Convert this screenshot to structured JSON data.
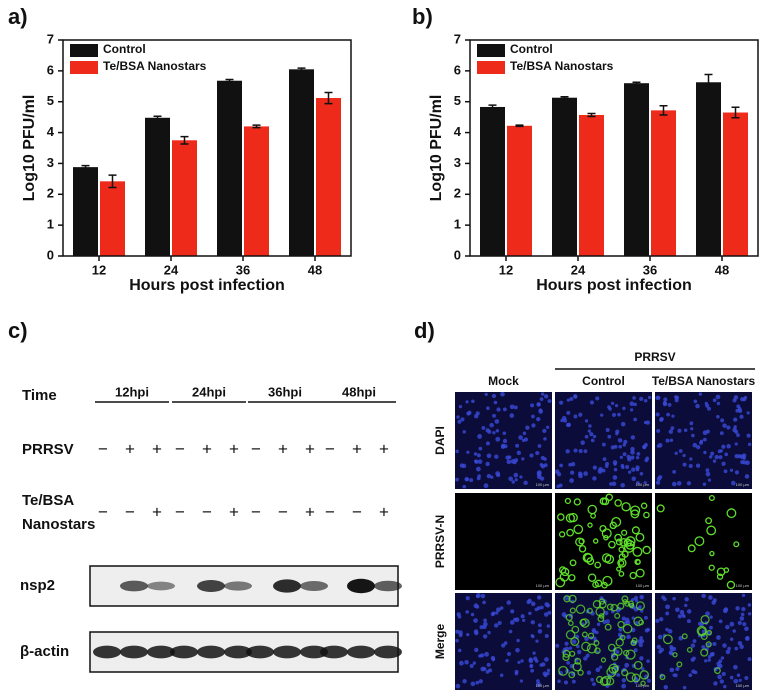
{
  "chart_data": [
    {
      "type": "bar",
      "panel": "a)",
      "x_label": "Hours post infection",
      "y_label": "Log10 PFU/ml",
      "categories": [
        "12",
        "24",
        "36",
        "48"
      ],
      "series": [
        {
          "name": "Control",
          "color": "#111111",
          "values": [
            2.88,
            4.48,
            5.68,
            6.05
          ],
          "errors": [
            0.05,
            0.05,
            0.04,
            0.04
          ]
        },
        {
          "name": "Te/BSA Nanostars",
          "color": "#ee2a1b",
          "values": [
            2.42,
            3.75,
            4.2,
            5.12
          ],
          "errors": [
            0.2,
            0.12,
            0.04,
            0.18
          ]
        }
      ],
      "ylim": [
        0,
        7
      ],
      "yticks": [
        0,
        1,
        2,
        3,
        4,
        5,
        6,
        7
      ],
      "legend": "upper left"
    },
    {
      "type": "bar",
      "panel": "b)",
      "x_label": "Hours post infection",
      "y_label": "Log10 PFU/ml",
      "categories": [
        "12",
        "24",
        "36",
        "48"
      ],
      "series": [
        {
          "name": "Control",
          "color": "#111111",
          "values": [
            4.83,
            5.13,
            5.6,
            5.63
          ],
          "errors": [
            0.06,
            0.03,
            0.03,
            0.25
          ]
        },
        {
          "name": "Te/BSA Nanostars",
          "color": "#ee2a1b",
          "values": [
            4.22,
            4.57,
            4.72,
            4.65
          ],
          "errors": [
            0.02,
            0.05,
            0.15,
            0.17
          ]
        }
      ],
      "ylim": [
        0,
        7
      ],
      "yticks": [
        0,
        1,
        2,
        3,
        4,
        5,
        6,
        7
      ],
      "legend": "upper left"
    }
  ],
  "blot": {
    "panel": "c)",
    "time_label": "Time",
    "time_groups": [
      "12hpi",
      "24hpi",
      "36hpi",
      "48hpi"
    ],
    "rows": [
      {
        "label_lines": [
          "PRRSV"
        ],
        "signs": [
          "−",
          "+",
          "+",
          "−",
          "+",
          "+",
          "−",
          "+",
          "+",
          "−",
          "+",
          "+"
        ]
      },
      {
        "label_lines": [
          "Te/BSA",
          "Nanostars"
        ],
        "signs": [
          "−",
          "−",
          "+",
          "−",
          "−",
          "+",
          "−",
          "−",
          "+",
          "−",
          "−",
          "+"
        ]
      }
    ],
    "bands": [
      "nsp2",
      "β-actin"
    ]
  },
  "microscopy": {
    "panel": "d)",
    "group": "PRRSV",
    "columns": [
      "Mock",
      "Control",
      "Te/BSA Nanostars"
    ],
    "rows": [
      "DAPI",
      "PRRSV-N",
      "Merge"
    ],
    "scale_label": "100 μm"
  }
}
